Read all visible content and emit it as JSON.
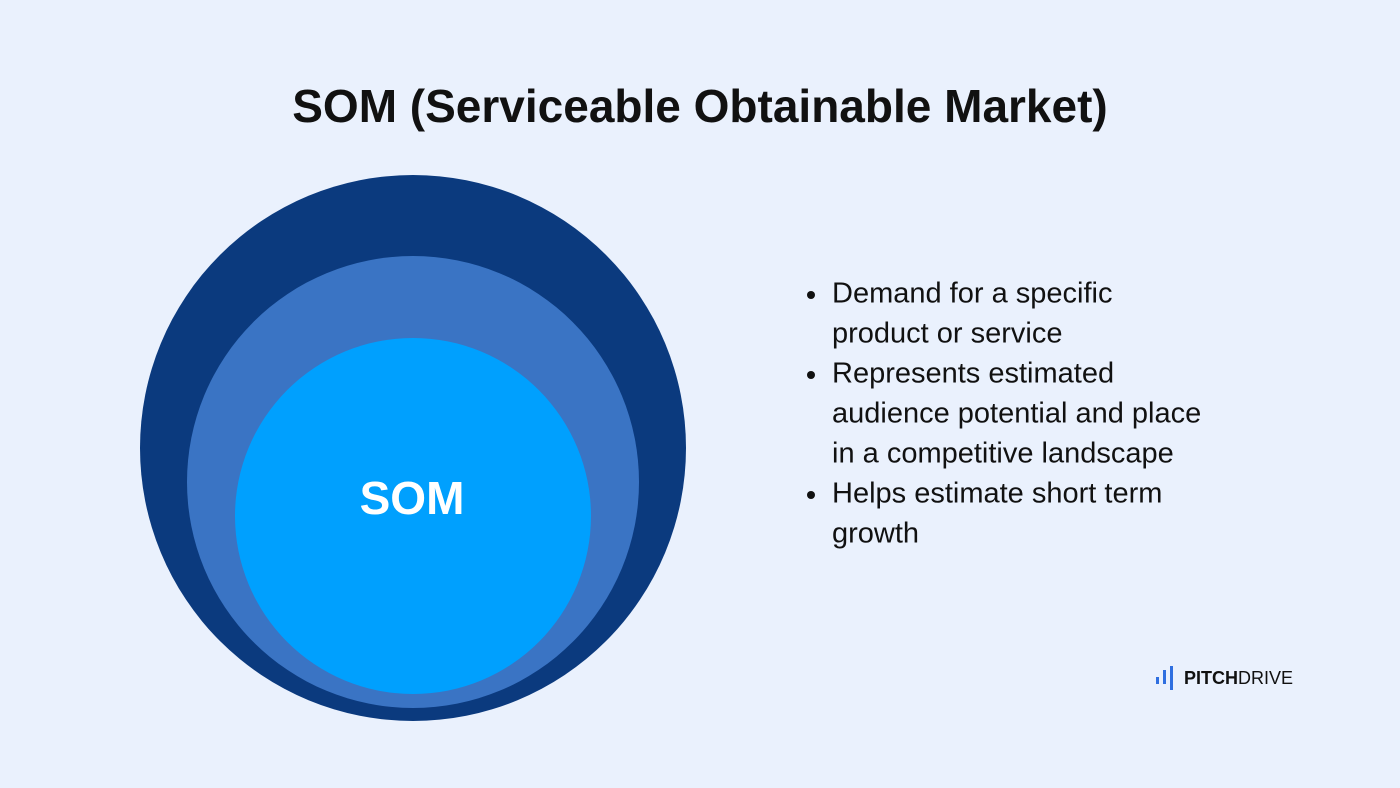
{
  "title": "SOM (Serviceable Obtainable Market)",
  "diagram": {
    "center_label": "SOM"
  },
  "bullets": [
    [
      "Demand for a specific",
      "product or service"
    ],
    [
      "Represents estimated",
      "audience potential and place",
      "in a competitive landscape"
    ],
    [
      "Helps estimate short term",
      "growth"
    ]
  ],
  "logo": {
    "bold": "PITCH",
    "light": "DRIVE"
  }
}
